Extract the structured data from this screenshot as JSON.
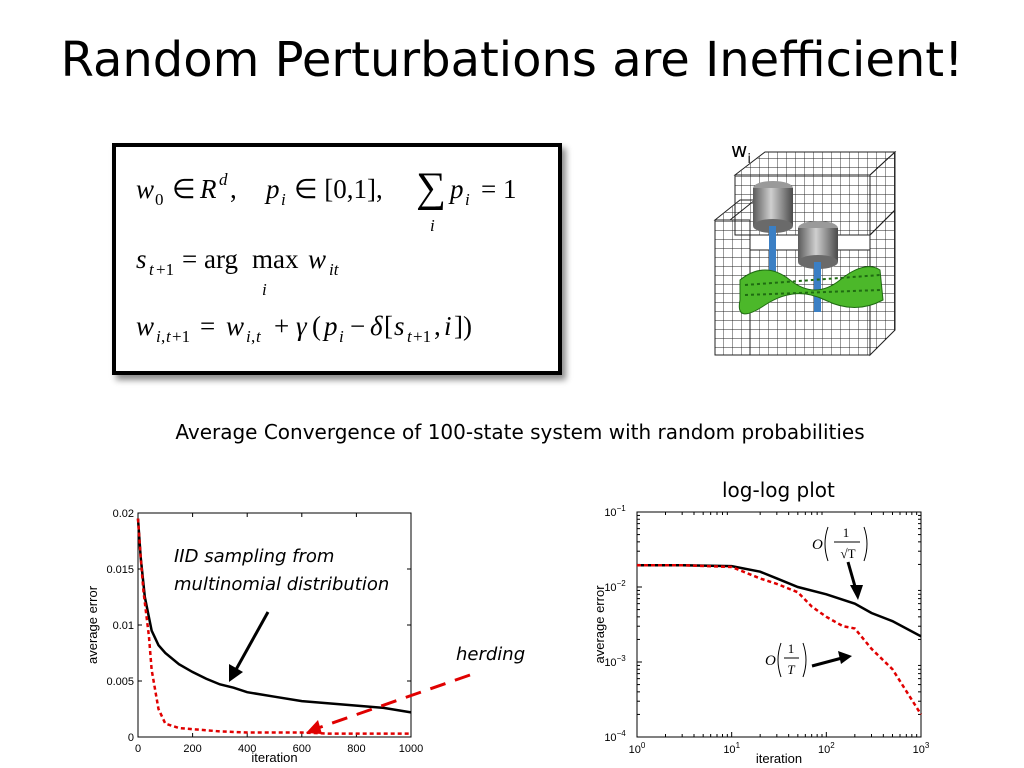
{
  "slide": {
    "title": "Random Perturbations are Inefficient!",
    "subtitle": "Average Convergence of 100-state system with random probabilities",
    "loglog_label": "log-log plot",
    "engine_label_main": "w",
    "engine_label_sub": "i"
  },
  "equations": {
    "line1": "w0 ∈ R^d, p_i ∈ [0,1], Σ_i p_i = 1",
    "line2": "s_{t+1} = argmax_i w_it",
    "line3": "w_{i,t+1} = w_{i,t} + γ(p_i − δ[s_{t+1}, i])"
  },
  "chart_data": [
    {
      "type": "line",
      "xlabel": "iteration",
      "ylabel": "average error",
      "xlim": [
        0,
        1000
      ],
      "ylim": [
        0,
        0.02
      ],
      "xticks": [
        "0",
        "200",
        "400",
        "600",
        "800",
        "1000"
      ],
      "yticks": [
        "0",
        "0.005",
        "0.01",
        "0.015",
        "0.02"
      ],
      "series": [
        {
          "color": "#000000",
          "style": "solid",
          "x": [
            0,
            10,
            25,
            50,
            75,
            100,
            150,
            200,
            250,
            300,
            350,
            400,
            500,
            600,
            700,
            800,
            900,
            1000
          ],
          "y": [
            0.0195,
            0.016,
            0.0125,
            0.0095,
            0.0082,
            0.0075,
            0.0065,
            0.0058,
            0.0052,
            0.0047,
            0.0044,
            0.004,
            0.0036,
            0.0032,
            0.003,
            0.0028,
            0.0026,
            0.0022
          ]
        },
        {
          "color": "#e00000",
          "style": "dashed",
          "x": [
            0,
            10,
            20,
            30,
            40,
            50,
            75,
            100,
            150,
            200,
            300,
            400,
            500,
            600,
            700,
            800,
            900,
            1000
          ],
          "y": [
            0.0195,
            0.016,
            0.013,
            0.011,
            0.009,
            0.006,
            0.0025,
            0.0012,
            0.0008,
            0.0007,
            0.0005,
            0.0004,
            0.0004,
            0.0004,
            0.0003,
            0.0003,
            0.0003,
            0.0003
          ]
        }
      ],
      "annotations": [
        {
          "text": "IID sampling from",
          "style": "italic"
        },
        {
          "text": "multinomial distribution",
          "style": "italic"
        },
        {
          "text": "herding",
          "style": "italic"
        }
      ]
    },
    {
      "type": "line",
      "scale": "log-log",
      "xlabel": "iteration",
      "ylabel": "average error",
      "xlim": [
        1,
        1000
      ],
      "ylim": [
        0.0001,
        0.1
      ],
      "xtick_values": [
        1,
        10,
        100,
        1000
      ],
      "ytick_values": [
        0.0001,
        0.001,
        0.01,
        0.1
      ],
      "xtick_exponents": [
        "0",
        "1",
        "2",
        "3"
      ],
      "ytick_exponents": [
        "−4",
        "−3",
        "−2",
        "−1"
      ],
      "tick_base": "10",
      "series": [
        {
          "color": "#000000",
          "style": "solid",
          "x": [
            1,
            3,
            10,
            20,
            30,
            50,
            100,
            200,
            300,
            500,
            1000
          ],
          "y": [
            0.0195,
            0.0195,
            0.019,
            0.016,
            0.013,
            0.01,
            0.008,
            0.006,
            0.0045,
            0.0035,
            0.0022
          ]
        },
        {
          "color": "#e00000",
          "style": "dashed",
          "x": [
            1,
            3,
            10,
            20,
            30,
            50,
            70,
            100,
            150,
            200,
            300,
            500,
            1000
          ],
          "y": [
            0.0195,
            0.0195,
            0.0185,
            0.013,
            0.011,
            0.0085,
            0.0055,
            0.004,
            0.003,
            0.0028,
            0.0015,
            0.0008,
            0.0002
          ]
        }
      ],
      "annotations": [
        {
          "text": "O(1/√T)"
        },
        {
          "text": "O(1/T)"
        }
      ]
    }
  ]
}
